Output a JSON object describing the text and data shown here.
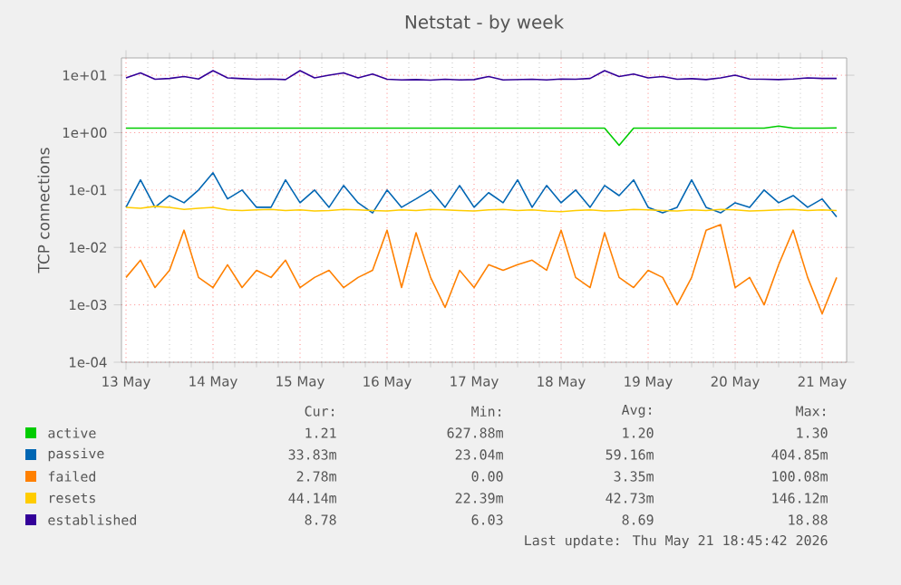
{
  "chart_data": {
    "type": "line",
    "title": "Netstat - by week",
    "ylabel": "TCP connections",
    "log": "y",
    "grid": true,
    "legend": "bottom",
    "ylim": [
      0.0001,
      20
    ],
    "yticks": [
      {
        "value": 0.0001,
        "label": "1e-04"
      },
      {
        "value": 0.001,
        "label": "1e-03"
      },
      {
        "value": 0.01,
        "label": "1e-02"
      },
      {
        "value": 0.1,
        "label": "1e-01"
      },
      {
        "value": 1,
        "label": "1e+00"
      },
      {
        "value": 10,
        "label": "1e+01"
      }
    ],
    "xlim": [
      "2026-05-13T10:45",
      "2026-05-21T18:45"
    ],
    "xticks": [
      {
        "value": "2026-05-13T12:00",
        "label": "13 May"
      },
      {
        "value": "2026-05-14T12:00",
        "label": "14 May"
      },
      {
        "value": "2026-05-15T12:00",
        "label": "15 May"
      },
      {
        "value": "2026-05-16T12:00",
        "label": "16 May"
      },
      {
        "value": "2026-05-17T12:00",
        "label": "17 May"
      },
      {
        "value": "2026-05-18T12:00",
        "label": "18 May"
      },
      {
        "value": "2026-05-19T12:00",
        "label": "19 May"
      },
      {
        "value": "2026-05-20T12:00",
        "label": "20 May"
      },
      {
        "value": "2026-05-21T12:00",
        "label": "21 May"
      }
    ],
    "x": [
      "2026-05-13T12:00",
      "2026-05-13T16:00",
      "2026-05-13T20:00",
      "2026-05-14T00:00",
      "2026-05-14T04:00",
      "2026-05-14T08:00",
      "2026-05-14T12:00",
      "2026-05-14T16:00",
      "2026-05-14T20:00",
      "2026-05-15T00:00",
      "2026-05-15T04:00",
      "2026-05-15T08:00",
      "2026-05-15T12:00",
      "2026-05-15T16:00",
      "2026-05-15T20:00",
      "2026-05-16T00:00",
      "2026-05-16T04:00",
      "2026-05-16T08:00",
      "2026-05-16T12:00",
      "2026-05-16T16:00",
      "2026-05-16T20:00",
      "2026-05-17T00:00",
      "2026-05-17T04:00",
      "2026-05-17T08:00",
      "2026-05-17T12:00",
      "2026-05-17T16:00",
      "2026-05-17T20:00",
      "2026-05-18T00:00",
      "2026-05-18T04:00",
      "2026-05-18T08:00",
      "2026-05-18T12:00",
      "2026-05-18T16:00",
      "2026-05-18T20:00",
      "2026-05-19T00:00",
      "2026-05-19T04:00",
      "2026-05-19T08:00",
      "2026-05-19T12:00",
      "2026-05-19T16:00",
      "2026-05-19T20:00",
      "2026-05-20T00:00",
      "2026-05-20T04:00",
      "2026-05-20T08:00",
      "2026-05-20T12:00",
      "2026-05-20T16:00",
      "2026-05-20T20:00",
      "2026-05-21T00:00",
      "2026-05-21T04:00",
      "2026-05-21T08:00",
      "2026-05-21T12:00",
      "2026-05-21T16:00"
    ],
    "series": [
      {
        "name": "active",
        "color": "#00cc00",
        "values": [
          1.2,
          1.2,
          1.2,
          1.2,
          1.2,
          1.2,
          1.2,
          1.2,
          1.2,
          1.2,
          1.2,
          1.2,
          1.2,
          1.2,
          1.2,
          1.2,
          1.2,
          1.2,
          1.2,
          1.2,
          1.2,
          1.2,
          1.2,
          1.2,
          1.2,
          1.2,
          1.2,
          1.2,
          1.2,
          1.2,
          1.2,
          1.2,
          1.2,
          1.2,
          0.6,
          1.2,
          1.2,
          1.2,
          1.2,
          1.2,
          1.2,
          1.2,
          1.2,
          1.2,
          1.2,
          1.3,
          1.2,
          1.2,
          1.2,
          1.21
        ]
      },
      {
        "name": "passive",
        "color": "#0066b3",
        "values": [
          0.05,
          0.15,
          0.05,
          0.08,
          0.06,
          0.1,
          0.2,
          0.07,
          0.1,
          0.05,
          0.05,
          0.15,
          0.06,
          0.1,
          0.05,
          0.12,
          0.06,
          0.04,
          0.1,
          0.05,
          0.07,
          0.1,
          0.05,
          0.12,
          0.05,
          0.09,
          0.06,
          0.15,
          0.05,
          0.12,
          0.06,
          0.1,
          0.05,
          0.12,
          0.08,
          0.15,
          0.05,
          0.04,
          0.05,
          0.15,
          0.05,
          0.04,
          0.06,
          0.05,
          0.1,
          0.06,
          0.08,
          0.05,
          0.07,
          0.034
        ]
      },
      {
        "name": "failed",
        "color": "#ff8000",
        "values": [
          0.003,
          0.006,
          0.002,
          0.004,
          0.02,
          0.003,
          0.002,
          0.005,
          0.002,
          0.004,
          0.003,
          0.006,
          0.002,
          0.003,
          0.004,
          0.002,
          0.003,
          0.004,
          0.02,
          0.002,
          0.018,
          0.003,
          0.0009,
          0.004,
          0.002,
          0.005,
          0.004,
          0.005,
          0.006,
          0.004,
          0.02,
          0.003,
          0.002,
          0.018,
          0.003,
          0.002,
          0.004,
          0.003,
          0.001,
          0.003,
          0.02,
          0.025,
          0.002,
          0.003,
          0.001,
          0.005,
          0.02,
          0.003,
          0.0007,
          0.003
        ]
      },
      {
        "name": "resets",
        "color": "#ffcc00",
        "values": [
          0.05,
          0.048,
          0.052,
          0.05,
          0.046,
          0.048,
          0.05,
          0.045,
          0.044,
          0.045,
          0.046,
          0.044,
          0.045,
          0.043,
          0.044,
          0.046,
          0.045,
          0.044,
          0.043,
          0.045,
          0.044,
          0.046,
          0.045,
          0.044,
          0.043,
          0.045,
          0.046,
          0.044,
          0.045,
          0.043,
          0.042,
          0.044,
          0.045,
          0.043,
          0.044,
          0.046,
          0.045,
          0.044,
          0.043,
          0.045,
          0.044,
          0.046,
          0.045,
          0.043,
          0.044,
          0.045,
          0.046,
          0.044,
          0.045,
          0.044
        ]
      },
      {
        "name": "established",
        "color": "#330099",
        "values": [
          9,
          11,
          8.5,
          8.8,
          9.5,
          8.6,
          12,
          9,
          8.7,
          8.5,
          8.6,
          8.4,
          12,
          9,
          10,
          11,
          9,
          10.5,
          8.5,
          8.3,
          8.4,
          8.2,
          8.5,
          8.3,
          8.4,
          9.5,
          8.3,
          8.4,
          8.5,
          8.3,
          8.6,
          8.5,
          8.8,
          12,
          9.5,
          10.5,
          9,
          9.5,
          8.5,
          8.7,
          8.4,
          9,
          10,
          8.6,
          8.5,
          8.4,
          8.6,
          9,
          8.8,
          8.78
        ]
      }
    ],
    "annotations": [
      "Cur:",
      "Min:",
      "Avg:",
      "Max:",
      "1.21",
      "627.88m",
      "1.20",
      "1.30",
      "33.83m",
      "23.04m",
      "59.16m",
      "404.85m",
      "2.78m",
      "0.00",
      "3.35m",
      "100.08m",
      "44.14m",
      "22.39m",
      "42.73m",
      "146.12m",
      "8.78",
      "6.03",
      "8.69",
      "18.88",
      "Last update: Thu May 21 18:45:42 2026"
    ]
  }
}
